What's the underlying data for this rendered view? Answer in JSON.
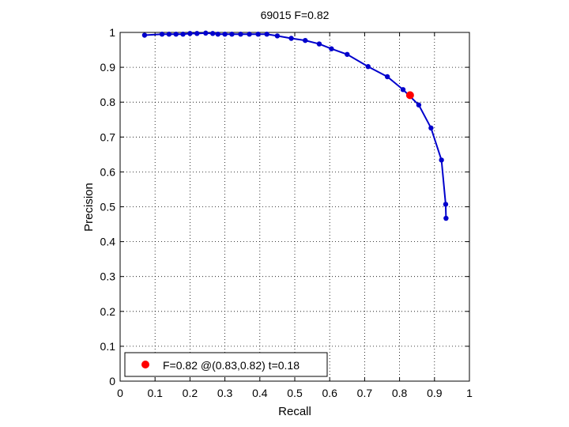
{
  "chart_data": {
    "type": "line",
    "title": "69015 F=0.82",
    "xlabel": "Recall",
    "ylabel": "Precision",
    "xlim": [
      0,
      1
    ],
    "ylim": [
      0,
      1
    ],
    "grid": true,
    "x_ticks": [
      "0",
      "0.1",
      "0.2",
      "0.3",
      "0.4",
      "0.5",
      "0.6",
      "0.7",
      "0.8",
      "0.9",
      "1"
    ],
    "y_ticks": [
      "0",
      "0.1",
      "0.2",
      "0.3",
      "0.4",
      "0.5",
      "0.6",
      "0.7",
      "0.8",
      "0.9",
      "1"
    ],
    "series": [
      {
        "color": "#0000cc",
        "points": [
          [
            0.07,
            0.992
          ],
          [
            0.12,
            0.995
          ],
          [
            0.14,
            0.995
          ],
          [
            0.16,
            0.995
          ],
          [
            0.18,
            0.995
          ],
          [
            0.2,
            0.997
          ],
          [
            0.22,
            0.997
          ],
          [
            0.245,
            0.998
          ],
          [
            0.265,
            0.997
          ],
          [
            0.28,
            0.995
          ],
          [
            0.3,
            0.995
          ],
          [
            0.32,
            0.995
          ],
          [
            0.345,
            0.995
          ],
          [
            0.37,
            0.995
          ],
          [
            0.395,
            0.995
          ],
          [
            0.42,
            0.995
          ],
          [
            0.45,
            0.99
          ],
          [
            0.49,
            0.983
          ],
          [
            0.53,
            0.977
          ],
          [
            0.57,
            0.967
          ],
          [
            0.605,
            0.953
          ],
          [
            0.65,
            0.937
          ],
          [
            0.71,
            0.902
          ],
          [
            0.765,
            0.873
          ],
          [
            0.81,
            0.836
          ],
          [
            0.855,
            0.792
          ],
          [
            0.89,
            0.726
          ],
          [
            0.92,
            0.634
          ],
          [
            0.932,
            0.507
          ],
          [
            0.933,
            0.467
          ]
        ]
      }
    ],
    "highlight": {
      "x": 0.83,
      "y": 0.82,
      "color": "#ff0000"
    },
    "legend": {
      "placement": "bottom-left",
      "label": "F=0.82 @(0.83,0.82) t=0.18"
    }
  }
}
